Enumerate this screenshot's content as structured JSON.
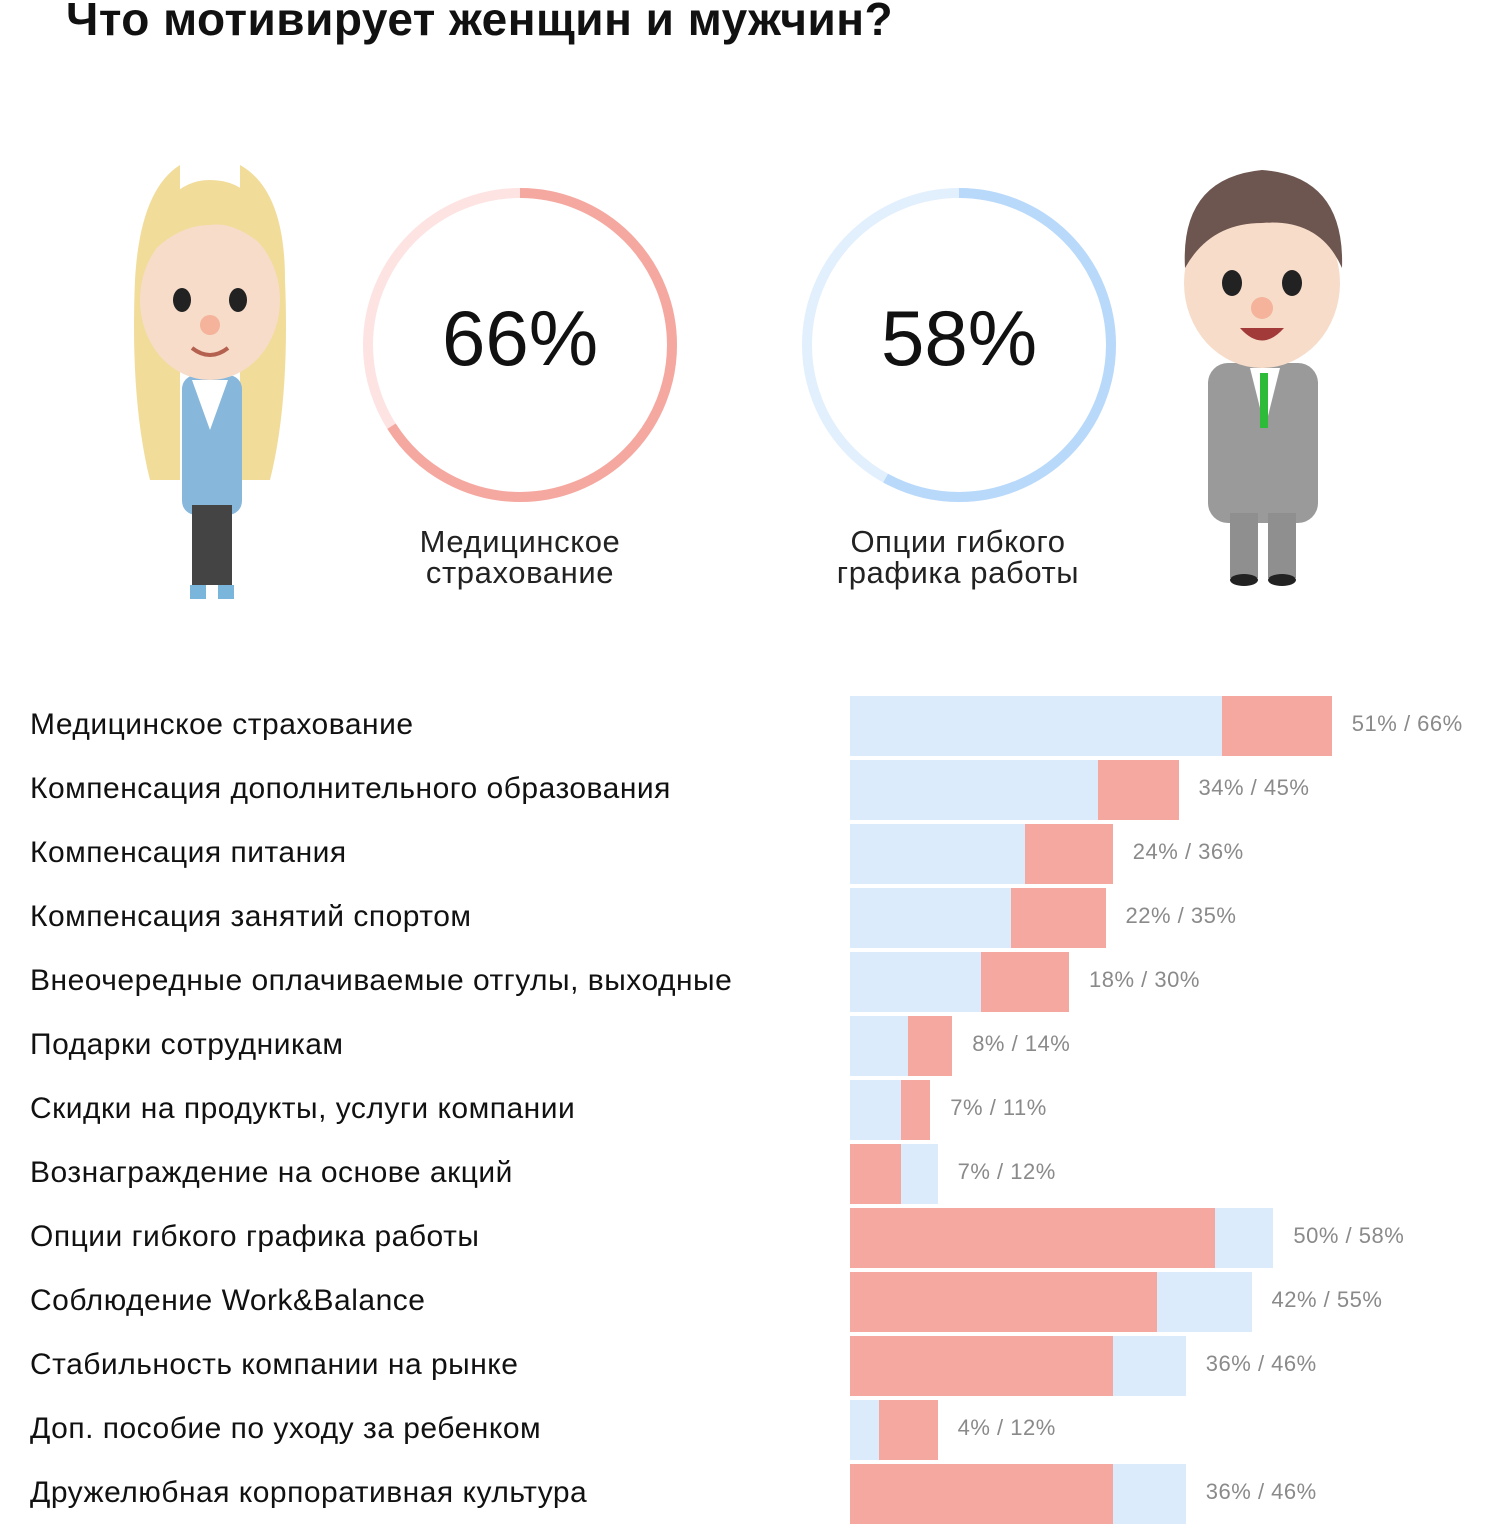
{
  "title": "Что мотивирует женщин и мужчин?",
  "highlights": {
    "women": {
      "value": "66%",
      "label_lines": [
        "Медицинское",
        "страхование"
      ],
      "fraction": 0.66,
      "color": "#f5a8a0",
      "track_color": "#fde3e1"
    },
    "men": {
      "value": "58%",
      "label_lines": [
        "Опции гибкого",
        "графика работы"
      ],
      "fraction": 0.58,
      "color": "#b9d9fb",
      "track_color": "#e2effd"
    }
  },
  "colors": {
    "light_blue": "#dcebfc",
    "pink": "#f5a8a0",
    "pct_text": "#8a8a8a"
  },
  "chart_data": {
    "type": "bar",
    "orientation": "horizontal",
    "categories": [
      "Медицинское страхование",
      "Компенсация дополнительного образования",
      "Компенсация питания",
      "Компенсация занятий спортом",
      "Внеочередные оплачиваемые отгулы, выходные",
      "Подарки сотрудникам",
      "Скидки на продукты, услуги компании",
      "Вознаграждение на основе акций",
      "Опции гибкого графика работы",
      "Соблюдение Work&Balance",
      "Стабильность компании на рынке",
      "Доп. пособие по уходу за ребенком",
      "Дружелюбная корпоративная культура"
    ],
    "series": [
      {
        "values": [
          51,
          34,
          24,
          22,
          18,
          8,
          7,
          7,
          50,
          42,
          36,
          4,
          36
        ]
      },
      {
        "values": [
          66,
          45,
          36,
          35,
          30,
          14,
          11,
          12,
          58,
          55,
          46,
          12,
          46
        ]
      }
    ],
    "front_color": [
      "light_blue",
      "light_blue",
      "light_blue",
      "light_blue",
      "light_blue",
      "light_blue",
      "light_blue",
      "pink",
      "pink",
      "pink",
      "pink",
      "light_blue",
      "pink"
    ],
    "value_labels": [
      "51% / 66%",
      "34% / 45%",
      "24% / 36%",
      "22% / 35%",
      "18% / 30%",
      "8% / 14%",
      "7% / 11%",
      "7% / 12%",
      "50% / 58%",
      "42% / 55%",
      "36% / 46%",
      "4% / 12%",
      "36% / 46%"
    ],
    "xlim": [
      0,
      66
    ]
  }
}
